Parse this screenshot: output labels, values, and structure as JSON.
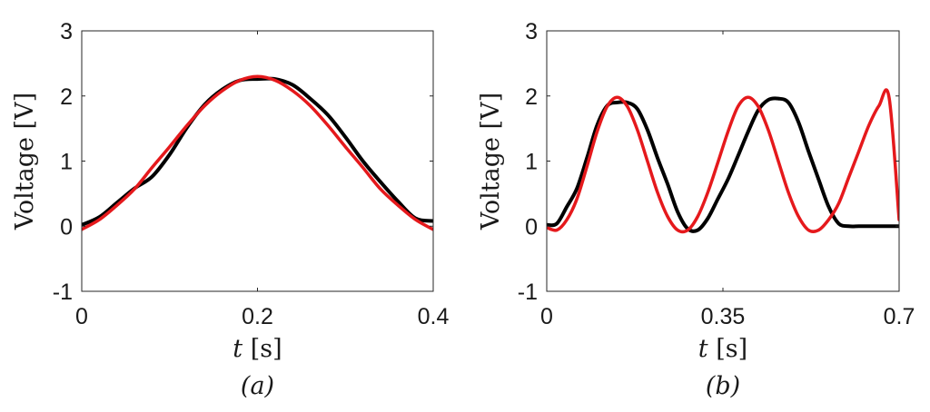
{
  "chart_data": [
    {
      "type": "line",
      "panel_label": "(a)",
      "xlabel_var": "t",
      "xlabel_unit": "[s]",
      "ylabel": "Voltage [V]",
      "xlim": [
        0,
        0.4
      ],
      "ylim": [
        -1,
        3
      ],
      "xticks": [
        0,
        0.2,
        0.4
      ],
      "xtick_labels": [
        "0",
        "0.2",
        "0.4"
      ],
      "yticks": [
        -1,
        0,
        1,
        2,
        3
      ],
      "ytick_labels": [
        "-1",
        "0",
        "1",
        "2",
        "3"
      ],
      "grid": false,
      "series": [
        {
          "color": "#000000",
          "x": [
            0,
            0.02,
            0.04,
            0.06,
            0.08,
            0.1,
            0.12,
            0.14,
            0.16,
            0.18,
            0.2,
            0.22,
            0.24,
            0.26,
            0.28,
            0.3,
            0.32,
            0.34,
            0.36,
            0.38,
            0.4
          ],
          "y": [
            0.02,
            0.14,
            0.36,
            0.58,
            0.76,
            1.1,
            1.52,
            1.87,
            2.1,
            2.24,
            2.26,
            2.26,
            2.17,
            1.96,
            1.71,
            1.37,
            1.0,
            0.68,
            0.38,
            0.12,
            0.08
          ]
        },
        {
          "color": "#e5191c",
          "x": [
            0,
            0.02,
            0.04,
            0.06,
            0.08,
            0.1,
            0.12,
            0.14,
            0.16,
            0.18,
            0.2,
            0.22,
            0.24,
            0.26,
            0.28,
            0.3,
            0.32,
            0.34,
            0.36,
            0.38,
            0.4
          ],
          "y": [
            -0.05,
            0.1,
            0.32,
            0.57,
            0.9,
            1.22,
            1.55,
            1.85,
            2.08,
            2.24,
            2.3,
            2.24,
            2.08,
            1.85,
            1.55,
            1.22,
            0.9,
            0.57,
            0.32,
            0.1,
            -0.05
          ]
        }
      ]
    },
    {
      "type": "line",
      "panel_label": "(b)",
      "xlabel_var": "t",
      "xlabel_unit": "[s]",
      "ylabel": "Voltage [V]",
      "xlim": [
        0,
        0.7
      ],
      "ylim": [
        -1,
        3
      ],
      "xticks": [
        0,
        0.35,
        0.7
      ],
      "xtick_labels": [
        "0",
        "0.35",
        "0.7"
      ],
      "yticks": [
        -1,
        0,
        1,
        2,
        3
      ],
      "ytick_labels": [
        "-1",
        "0",
        "1",
        "2",
        "3"
      ],
      "grid": false,
      "series": [
        {
          "color": "#000000",
          "x": [
            0,
            0.02,
            0.04,
            0.06,
            0.08,
            0.1,
            0.12,
            0.14,
            0.16,
            0.18,
            0.2,
            0.22,
            0.24,
            0.26,
            0.28,
            0.3,
            0.32,
            0.34,
            0.36,
            0.38,
            0.4,
            0.42,
            0.44,
            0.46,
            0.48,
            0.5,
            0.52,
            0.54,
            0.56,
            0.58,
            0.6,
            0.62,
            0.64,
            0.66,
            0.68,
            0.7
          ],
          "y": [
            0.02,
            0.04,
            0.3,
            0.58,
            1.05,
            1.55,
            1.85,
            1.9,
            1.9,
            1.8,
            1.48,
            1.05,
            0.65,
            0.22,
            -0.04,
            -0.06,
            0.12,
            0.42,
            0.72,
            1.08,
            1.45,
            1.78,
            1.94,
            1.96,
            1.9,
            1.6,
            1.15,
            0.72,
            0.3,
            0.04,
            0.0,
            0.0,
            0.0,
            0.0,
            0.0,
            0.0
          ]
        },
        {
          "color": "#e5191c",
          "x": [
            0,
            0.02,
            0.04,
            0.06,
            0.08,
            0.1,
            0.12,
            0.14,
            0.16,
            0.18,
            0.2,
            0.22,
            0.24,
            0.26,
            0.28,
            0.3,
            0.32,
            0.34,
            0.36,
            0.38,
            0.4,
            0.42,
            0.44,
            0.46,
            0.48,
            0.5,
            0.52,
            0.54,
            0.56,
            0.58,
            0.6,
            0.62,
            0.64,
            0.66,
            0.68,
            0.7
          ],
          "y": [
            -0.02,
            -0.06,
            0.1,
            0.42,
            0.92,
            1.45,
            1.84,
            1.98,
            1.84,
            1.48,
            1.0,
            0.52,
            0.15,
            -0.06,
            -0.06,
            0.15,
            0.52,
            0.98,
            1.45,
            1.84,
            1.98,
            1.84,
            1.48,
            1.0,
            0.52,
            0.15,
            -0.06,
            -0.06,
            0.1,
            0.35,
            0.75,
            1.15,
            1.55,
            1.85,
            1.98,
            0.1
          ]
        }
      ]
    }
  ]
}
